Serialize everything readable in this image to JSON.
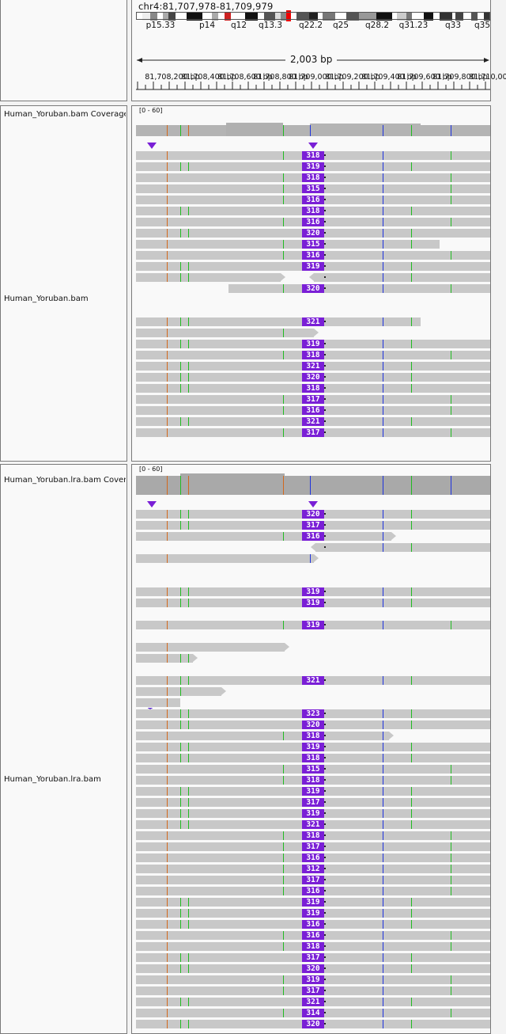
{
  "locus": "chr4:81,707,978-81,709,979",
  "span_label": "2,003 bp",
  "ideogram": {
    "labels": [
      "p15.33",
      "p14",
      "q12",
      "q13.3",
      "q22.2",
      "q25",
      "q28.2",
      "q31.23",
      "q33",
      "q35"
    ]
  },
  "ruler": {
    "labels": [
      "81,708,200 bp",
      "81,708,400 bp",
      "81,708,600 bp",
      "81,708,800 bp",
      "81,709,000 bp",
      "81,709,200 bp",
      "81,709,400 bp",
      "81,709,600 bp",
      "81,709,800 bp",
      "81,710,000 bp"
    ]
  },
  "tracks": [
    {
      "coverage_name": "Human_Yoruban.bam Coverage",
      "coverage_range": "[0 - 60]",
      "alignment_name": "Human_Yoruban.bam",
      "insertions": [
        "318",
        "319",
        "318",
        "315",
        "316",
        "318",
        "316",
        "320",
        "315",
        "316",
        "319",
        "320",
        "321",
        "319",
        "318",
        "321",
        "320",
        "318",
        "317",
        "316",
        "321",
        "317"
      ]
    },
    {
      "coverage_name": "Human_Yoruban.lra.bam Coverage",
      "coverage_range": "[0 - 60]",
      "alignment_name": "Human_Yoruban.lra.bam",
      "insertions": [
        "320",
        "317",
        "316",
        "319",
        "319",
        "319",
        "321",
        "323",
        "320",
        "318",
        "319",
        "318",
        "315",
        "318",
        "319",
        "317",
        "319",
        "321",
        "318",
        "317",
        "316",
        "312",
        "317",
        "316",
        "319",
        "319",
        "316",
        "316",
        "318",
        "317",
        "320",
        "319",
        "317",
        "321",
        "314",
        "320"
      ]
    }
  ],
  "colors": {
    "insertion": "#7a1fd6",
    "read": "#c8c8c8",
    "coverage": "#b4b4b4",
    "mismatch_T": "#d2691e",
    "mismatch_A": "#22bb22",
    "mismatch_C": "#1f33dd"
  }
}
